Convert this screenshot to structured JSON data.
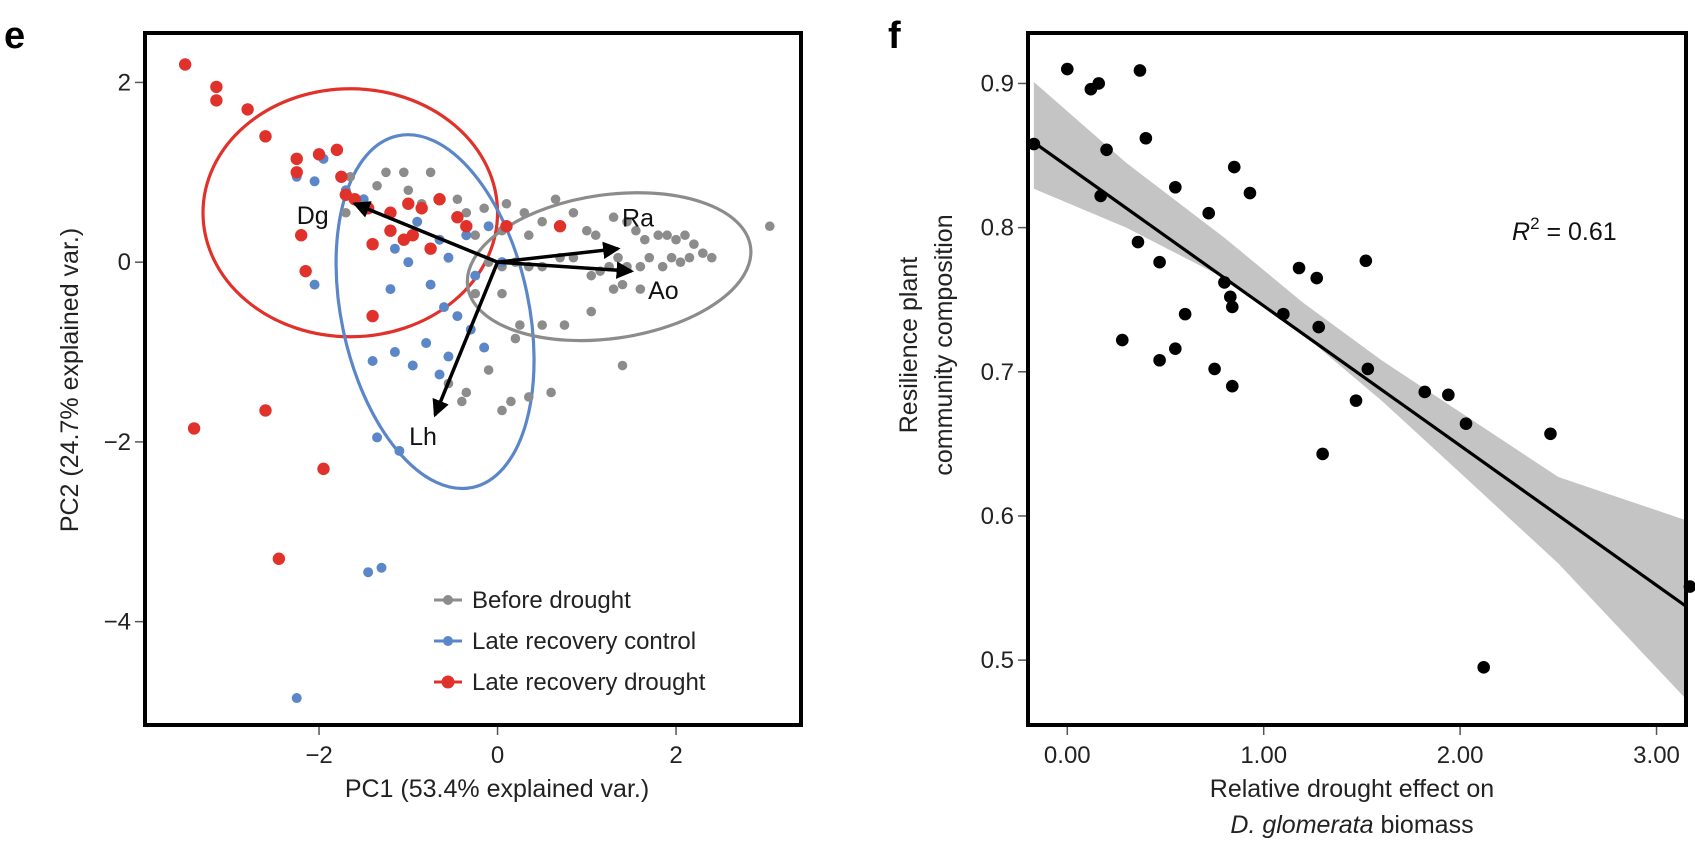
{
  "panels": {
    "e": {
      "letter": "e",
      "chart_data": {
        "type": "scatter",
        "xlabel": "PC1 (53.4% explained  var.)",
        "ylabel": "PC2 (24.7% explained  var.)",
        "xlim": [
          -3.95,
          3.4
        ],
        "ylim": [
          -5.15,
          2.55
        ],
        "xticks": [
          -2,
          0,
          2
        ],
        "xtick_labels": [
          "−2",
          "0",
          "2"
        ],
        "yticks": [
          2,
          0,
          -2,
          -4
        ],
        "ytick_labels": [
          "2",
          "0",
          "−2",
          "−4"
        ],
        "legend_position": "bottom-right",
        "series": [
          {
            "name": "Before drought",
            "color": "#8c8c8c",
            "points": [
              [
                -1.65,
                0.95
              ],
              [
                -1.25,
                1.0
              ],
              [
                -1.05,
                1.0
              ],
              [
                -0.75,
                1.0
              ],
              [
                -1.35,
                0.85
              ],
              [
                -1.0,
                0.8
              ],
              [
                -0.85,
                0.65
              ],
              [
                -1.7,
                0.55
              ],
              [
                -0.45,
                0.7
              ],
              [
                -0.35,
                0.55
              ],
              [
                -0.15,
                0.6
              ],
              [
                0.1,
                0.65
              ],
              [
                0.3,
                0.55
              ],
              [
                0.65,
                0.7
              ],
              [
                -0.25,
                0.3
              ],
              [
                0.05,
                0.35
              ],
              [
                0.35,
                0.3
              ],
              [
                0.5,
                0.45
              ],
              [
                0.85,
                0.55
              ],
              [
                1.0,
                0.35
              ],
              [
                1.1,
                0.3
              ],
              [
                1.3,
                0.5
              ],
              [
                1.45,
                0.45
              ],
              [
                1.55,
                0.35
              ],
              [
                1.65,
                0.25
              ],
              [
                1.8,
                0.3
              ],
              [
                1.9,
                0.3
              ],
              [
                2.0,
                0.25
              ],
              [
                2.1,
                0.3
              ],
              [
                2.2,
                0.2
              ],
              [
                2.3,
                0.1
              ],
              [
                2.4,
                0.05
              ],
              [
                2.15,
                0.05
              ],
              [
                2.05,
                0.0
              ],
              [
                1.95,
                0.05
              ],
              [
                1.85,
                -0.05
              ],
              [
                1.7,
                0.05
              ],
              [
                1.6,
                -0.05
              ],
              [
                1.45,
                -0.05
              ],
              [
                1.35,
                0.05
              ],
              [
                1.25,
                -0.05
              ],
              [
                1.15,
                -0.1
              ],
              [
                1.05,
                -0.15
              ],
              [
                0.85,
                0.05
              ],
              [
                0.7,
                0.05
              ],
              [
                0.5,
                -0.05
              ],
              [
                0.35,
                -0.05
              ],
              [
                0.2,
                0.0
              ],
              [
                0.05,
                -0.05
              ],
              [
                -0.1,
                0.0
              ],
              [
                1.3,
                -0.3
              ],
              [
                1.6,
                -0.3
              ],
              [
                1.4,
                -0.25
              ],
              [
                1.05,
                -0.55
              ],
              [
                0.75,
                -0.7
              ],
              [
                0.5,
                -0.7
              ],
              [
                0.25,
                -0.7
              ],
              [
                0.05,
                -0.35
              ],
              [
                -0.25,
                -0.35
              ],
              [
                0.2,
                -0.85
              ],
              [
                -0.1,
                -1.2
              ],
              [
                -0.35,
                -1.45
              ],
              [
                0.35,
                -1.5
              ],
              [
                0.6,
                -1.45
              ],
              [
                0.15,
                -1.55
              ],
              [
                0.05,
                -1.65
              ],
              [
                -0.4,
                -1.55
              ],
              [
                -0.55,
                -1.35
              ],
              [
                1.4,
                -1.15
              ],
              [
                3.05,
                0.4
              ]
            ]
          },
          {
            "name": "Late recovery control",
            "color": "#5b87c8",
            "points": [
              [
                -2.25,
                0.95
              ],
              [
                -2.05,
                0.9
              ],
              [
                -1.95,
                1.15
              ],
              [
                -1.7,
                0.8
              ],
              [
                -1.5,
                0.7
              ],
              [
                -1.2,
                0.55
              ],
              [
                -0.9,
                0.45
              ],
              [
                -0.65,
                0.25
              ],
              [
                -0.35,
                0.3
              ],
              [
                -0.1,
                0.4
              ],
              [
                -0.55,
                0.05
              ],
              [
                -1.15,
                0.15
              ],
              [
                -1.0,
                0.0
              ],
              [
                -0.75,
                -0.25
              ],
              [
                -0.6,
                -0.5
              ],
              [
                -0.45,
                -0.6
              ],
              [
                -0.3,
                -0.75
              ],
              [
                -0.15,
                -0.95
              ],
              [
                -1.2,
                -0.3
              ],
              [
                -0.8,
                -0.9
              ],
              [
                -0.55,
                -1.05
              ],
              [
                -0.65,
                -1.25
              ],
              [
                -1.4,
                -1.1
              ],
              [
                -1.15,
                -1.0
              ],
              [
                -0.95,
                -1.15
              ],
              [
                -2.05,
                -0.25
              ],
              [
                -1.35,
                -1.95
              ],
              [
                -1.1,
                -2.1
              ],
              [
                -1.45,
                -3.45
              ],
              [
                -1.3,
                -3.4
              ],
              [
                -2.25,
                -4.85
              ],
              [
                0.05,
                0.0
              ],
              [
                -0.25,
                -0.15
              ]
            ]
          },
          {
            "name": "Late recovery drought",
            "color": "#e0322b",
            "points": [
              [
                -3.5,
                2.2
              ],
              [
                -3.15,
                1.95
              ],
              [
                -3.15,
                1.8
              ],
              [
                -2.8,
                1.7
              ],
              [
                -2.6,
                1.4
              ],
              [
                -2.25,
                1.15
              ],
              [
                -2.25,
                1.0
              ],
              [
                -2.0,
                1.2
              ],
              [
                -1.8,
                1.25
              ],
              [
                -1.75,
                0.95
              ],
              [
                -1.7,
                0.75
              ],
              [
                -1.6,
                0.7
              ],
              [
                -1.45,
                0.6
              ],
              [
                -1.2,
                0.55
              ],
              [
                -1.0,
                0.65
              ],
              [
                -0.85,
                0.6
              ],
              [
                -0.65,
                0.7
              ],
              [
                -0.45,
                0.5
              ],
              [
                -0.35,
                0.4
              ],
              [
                -1.2,
                0.35
              ],
              [
                -0.95,
                0.3
              ],
              [
                -0.75,
                0.15
              ],
              [
                -1.4,
                0.2
              ],
              [
                -1.05,
                0.25
              ],
              [
                0.1,
                0.4
              ],
              [
                0.7,
                0.4
              ],
              [
                -2.2,
                0.3
              ],
              [
                -2.15,
                -0.1
              ],
              [
                -1.4,
                -0.6
              ],
              [
                -3.4,
                -1.85
              ],
              [
                -2.6,
                -1.65
              ],
              [
                -1.95,
                -2.3
              ],
              [
                -2.45,
                -3.3
              ]
            ]
          }
        ],
        "loadings": [
          {
            "label": "Dg",
            "x": -1.6,
            "y": 0.65
          },
          {
            "label": "Ra",
            "x": 1.35,
            "y": 0.15
          },
          {
            "label": "Ao",
            "x": 1.5,
            "y": -0.1
          },
          {
            "label": "Lh",
            "x": -0.7,
            "y": -1.7
          }
        ],
        "ellipses": [
          {
            "series": "Late recovery drought",
            "color": "#e0322b",
            "cx": -1.65,
            "cy": 0.55,
            "rx": 1.65,
            "ry": 1.38,
            "angle": 0
          },
          {
            "series": "Late recovery control",
            "color": "#5b87c8",
            "cx": -0.7,
            "cy": -0.55,
            "rx": 1.05,
            "ry": 2.0,
            "angle": -12
          },
          {
            "series": "Before drought",
            "color": "#8c8c8c",
            "cx": 1.25,
            "cy": -0.05,
            "rx": 1.6,
            "ry": 0.8,
            "angle": -8
          }
        ]
      }
    },
    "f": {
      "letter": "f",
      "r2": {
        "prefix": "R",
        "sup": "2",
        "suffix": " = 0.61"
      },
      "chart_data": {
        "type": "scatter",
        "xlabel_line1": "Relative drought effect on",
        "xlabel_line2_italic": "D. glomerata",
        "xlabel_line2_rest": " biomass",
        "ylabel_line1": "Resilience plant",
        "ylabel_line2": "community composition",
        "xlim": [
          -0.2,
          3.15
        ],
        "ylim": [
          0.455,
          0.935
        ],
        "xticks": [
          0,
          1,
          2,
          3
        ],
        "xtick_labels": [
          "0.00",
          "1.00",
          "2.00",
          "3.00"
        ],
        "yticks": [
          0.5,
          0.6,
          0.7,
          0.8,
          0.9
        ],
        "ytick_labels": [
          "0.5",
          "0.6",
          "0.7",
          "0.8",
          "0.9"
        ],
        "point_color": "#000000",
        "points": [
          [
            -0.17,
            0.858
          ],
          [
            0.0,
            0.91
          ],
          [
            0.16,
            0.9
          ],
          [
            0.37,
            0.909
          ],
          [
            0.12,
            0.896
          ],
          [
            0.2,
            0.854
          ],
          [
            0.4,
            0.862
          ],
          [
            0.85,
            0.842
          ],
          [
            0.93,
            0.824
          ],
          [
            0.55,
            0.828
          ],
          [
            0.17,
            0.822
          ],
          [
            0.72,
            0.81
          ],
          [
            0.36,
            0.79
          ],
          [
            0.47,
            0.776
          ],
          [
            0.28,
            0.722
          ],
          [
            0.8,
            0.762
          ],
          [
            0.83,
            0.752
          ],
          [
            0.84,
            0.745
          ],
          [
            0.6,
            0.74
          ],
          [
            1.18,
            0.772
          ],
          [
            1.27,
            0.765
          ],
          [
            1.52,
            0.777
          ],
          [
            1.1,
            0.74
          ],
          [
            1.28,
            0.731
          ],
          [
            0.55,
            0.716
          ],
          [
            0.47,
            0.708
          ],
          [
            0.75,
            0.702
          ],
          [
            0.84,
            0.69
          ],
          [
            1.53,
            0.702
          ],
          [
            1.82,
            0.686
          ],
          [
            1.94,
            0.684
          ],
          [
            1.47,
            0.68
          ],
          [
            2.03,
            0.664
          ],
          [
            2.46,
            0.657
          ],
          [
            1.3,
            0.643
          ],
          [
            2.12,
            0.495
          ],
          [
            3.17,
            0.551
          ]
        ],
        "fit_line": {
          "slope": -0.0969,
          "intercept": 0.8426
        },
        "ci_band": [
          {
            "x": -0.17,
            "lo": 0.827,
            "hi": 0.901
          },
          {
            "x": 0.3,
            "lo": 0.8,
            "hi": 0.845
          },
          {
            "x": 0.8,
            "lo": 0.765,
            "hi": 0.793
          },
          {
            "x": 1.2,
            "lo": 0.726,
            "hi": 0.748
          },
          {
            "x": 1.6,
            "lo": 0.68,
            "hi": 0.708
          },
          {
            "x": 2.0,
            "lo": 0.63,
            "hi": 0.672
          },
          {
            "x": 2.5,
            "lo": 0.567,
            "hi": 0.627
          },
          {
            "x": 3.15,
            "lo": 0.473,
            "hi": 0.597
          }
        ]
      }
    }
  }
}
